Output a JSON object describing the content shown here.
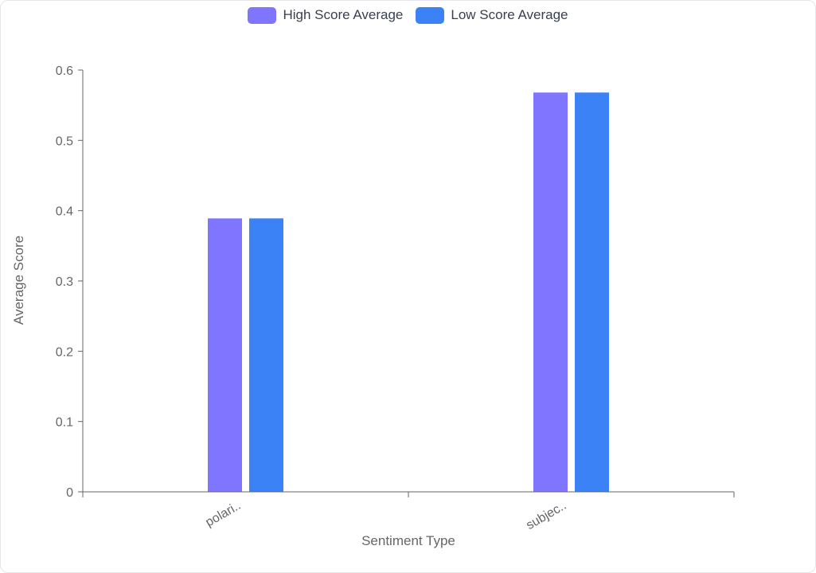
{
  "chart_data": {
    "type": "bar",
    "categories": [
      "polari..",
      "subjec.."
    ],
    "series": [
      {
        "name": "High Score Average",
        "values": [
          0.389,
          0.568
        ],
        "color": "#8075FF"
      },
      {
        "name": "Low Score Average",
        "values": [
          0.389,
          0.568
        ],
        "color": "#3B82F6"
      }
    ],
    "xlabel": "Sentiment Type",
    "ylabel": "Average Score",
    "ylim": [
      0,
      0.6
    ],
    "yticks": [
      "0",
      "0.1",
      "0.2",
      "0.3",
      "0.4",
      "0.5",
      "0.6"
    ],
    "grid": false,
    "legend_position": "top-center"
  }
}
